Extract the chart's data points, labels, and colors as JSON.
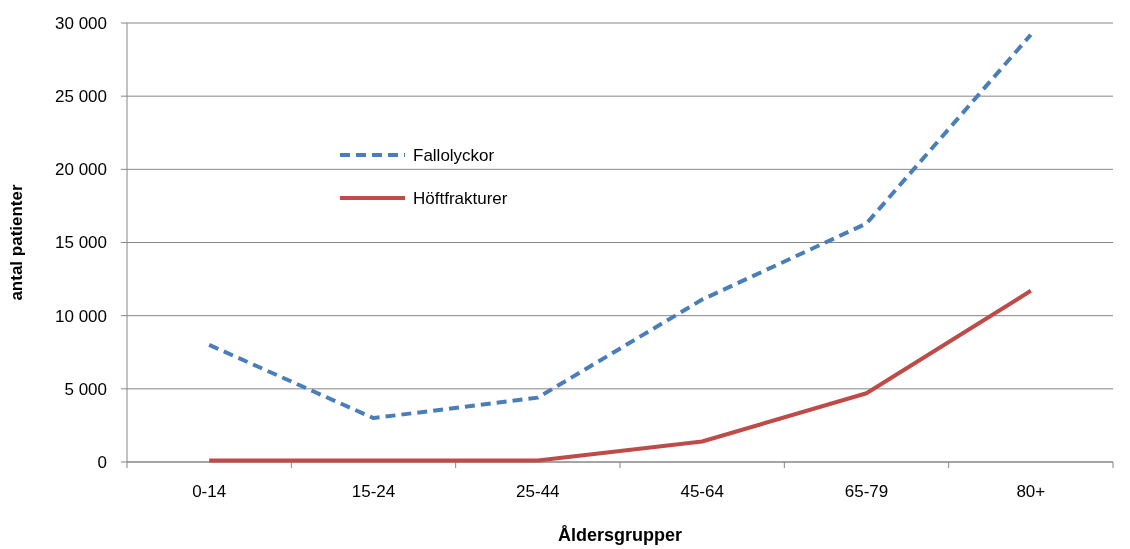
{
  "chart_data": {
    "type": "line",
    "xlabel": "Åldersgrupper",
    "ylabel": "antal patienter",
    "categories": [
      "0-14",
      "15-24",
      "25-44",
      "45-64",
      "65-79",
      "80+"
    ],
    "series": [
      {
        "name": "Fallolyckor",
        "color": "#4a7ebb",
        "line_style": "dashed",
        "values": [
          8000,
          3000,
          4400,
          11100,
          16300,
          29200
        ]
      },
      {
        "name": "Höftfrakturer",
        "color": "#be4b48",
        "line_style": "solid",
        "values": [
          100,
          100,
          100,
          1400,
          4700,
          11700
        ]
      }
    ],
    "ylim": [
      0,
      30000
    ],
    "yticks": [
      {
        "value": 0,
        "label": "0"
      },
      {
        "value": 5000,
        "label": "5 000"
      },
      {
        "value": 10000,
        "label": "10 000"
      },
      {
        "value": 15000,
        "label": "15 000"
      },
      {
        "value": 20000,
        "label": "20 000"
      },
      {
        "value": 25000,
        "label": "25 000"
      },
      {
        "value": 30000,
        "label": "30 000"
      }
    ],
    "grid": "y",
    "legend": "top left",
    "marker": "none"
  }
}
